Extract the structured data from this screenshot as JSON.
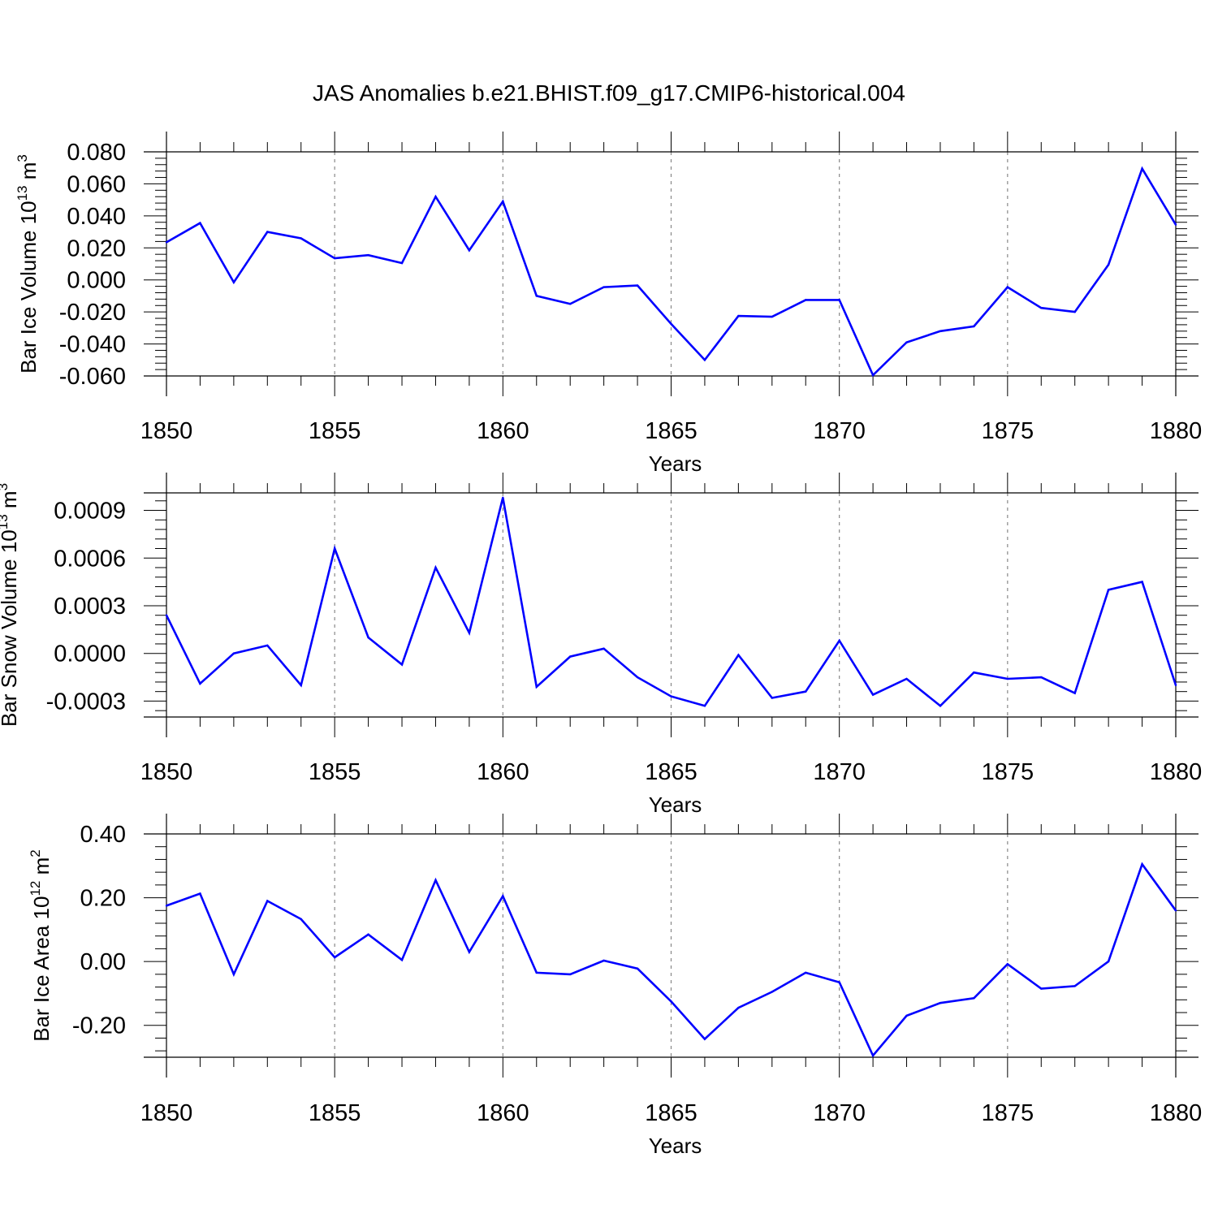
{
  "figure": {
    "title": "JAS Anomalies b.e21.BHIST.f09_g17.CMIP6-historical.004",
    "line_color": "#0000ff",
    "grid_color": "#888888"
  },
  "chart_data": [
    {
      "type": "line",
      "xlabel": "Years",
      "ylabel": {
        "text": "Bar Ice Volume 10",
        "exponent": "13",
        "unit": " m",
        "unit_exponent": "3"
      },
      "xlim": [
        1850,
        1880
      ],
      "ylim": [
        -0.06,
        0.08
      ],
      "x_ticks": [
        "1850",
        "1855",
        "1860",
        "1865",
        "1870",
        "1875",
        "1880"
      ],
      "y_ticks": [
        "-0.060",
        "-0.040",
        "-0.020",
        "0.000",
        "0.020",
        "0.040",
        "0.060",
        "0.080"
      ],
      "grid": "dashed vertical at major x ticks",
      "series": [
        {
          "x": [
            1850,
            1851,
            1852,
            1853,
            1854,
            1855,
            1856,
            1857,
            1858,
            1859,
            1860,
            1861,
            1862,
            1863,
            1864,
            1865,
            1866,
            1867,
            1868,
            1869,
            1870,
            1871,
            1872,
            1873,
            1874,
            1875,
            1876,
            1877,
            1878,
            1879,
            1880
          ],
          "values": [
            0.0235,
            0.0355,
            -0.0015,
            0.03,
            0.026,
            0.0135,
            0.0155,
            0.0105,
            0.052,
            0.0185,
            0.049,
            -0.01,
            -0.015,
            -0.0045,
            -0.0035,
            -0.0275,
            -0.05,
            -0.0225,
            -0.023,
            -0.0125,
            -0.0125,
            -0.0595,
            -0.039,
            -0.032,
            -0.029,
            -0.0045,
            -0.0175,
            -0.02,
            0.0095,
            0.0695,
            0.0345
          ]
        }
      ]
    },
    {
      "type": "line",
      "xlabel": "Years",
      "ylabel": {
        "text": "Bar Snow Volume 10",
        "exponent": "13",
        "unit": " m",
        "unit_exponent": "3"
      },
      "xlim": [
        1850,
        1880
      ],
      "ylim": [
        -0.0004,
        0.00101
      ],
      "x_ticks": [
        "1850",
        "1855",
        "1860",
        "1865",
        "1870",
        "1875",
        "1880"
      ],
      "y_ticks": [
        "-0.0003",
        "0.0000",
        "0.0003",
        "0.0006",
        "0.0009"
      ],
      "grid": "dashed vertical at major x ticks",
      "series": [
        {
          "x": [
            1850,
            1851,
            1852,
            1853,
            1854,
            1855,
            1856,
            1857,
            1858,
            1859,
            1860,
            1861,
            1862,
            1863,
            1864,
            1865,
            1866,
            1867,
            1868,
            1869,
            1870,
            1871,
            1872,
            1873,
            1874,
            1875,
            1876,
            1877,
            1878,
            1879,
            1880
          ],
          "values": [
            0.00024,
            -0.00019,
            0.0,
            5e-05,
            -0.0002,
            0.00066,
            0.0001,
            -7e-05,
            0.00054,
            0.00013,
            0.00098,
            -0.00021,
            -2e-05,
            3e-05,
            -0.00015,
            -0.00027,
            -0.00033,
            -1e-05,
            -0.00028,
            -0.00024,
            8e-05,
            -0.00026,
            -0.00016,
            -0.00033,
            -0.00012,
            -0.00016,
            -0.00015,
            -0.00025,
            0.0004,
            0.00045,
            -0.0002
          ]
        }
      ]
    },
    {
      "type": "line",
      "xlabel": "Years",
      "ylabel": {
        "text": "Bar Ice Area 10",
        "exponent": "12",
        "unit": " m",
        "unit_exponent": "2"
      },
      "xlim": [
        1850,
        1880
      ],
      "ylim": [
        -0.3,
        0.4
      ],
      "x_ticks": [
        "1850",
        "1855",
        "1860",
        "1865",
        "1870",
        "1875",
        "1880"
      ],
      "y_ticks": [
        "-0.20",
        "0.00",
        "0.20",
        "0.40"
      ],
      "grid": "dashed vertical at major x ticks",
      "series": [
        {
          "x": [
            1850,
            1851,
            1852,
            1853,
            1854,
            1855,
            1856,
            1857,
            1858,
            1859,
            1860,
            1861,
            1862,
            1863,
            1864,
            1865,
            1866,
            1867,
            1868,
            1869,
            1870,
            1871,
            1872,
            1873,
            1874,
            1875,
            1876,
            1877,
            1878,
            1879,
            1880
          ],
          "values": [
            0.175,
            0.213,
            -0.04,
            0.19,
            0.133,
            0.013,
            0.085,
            0.005,
            0.255,
            0.03,
            0.205,
            -0.035,
            -0.04,
            0.003,
            -0.022,
            -0.125,
            -0.243,
            -0.145,
            -0.095,
            -0.035,
            -0.065,
            -0.295,
            -0.17,
            -0.13,
            -0.115,
            -0.008,
            -0.085,
            -0.077,
            0.0,
            0.305,
            0.16
          ]
        }
      ]
    }
  ]
}
